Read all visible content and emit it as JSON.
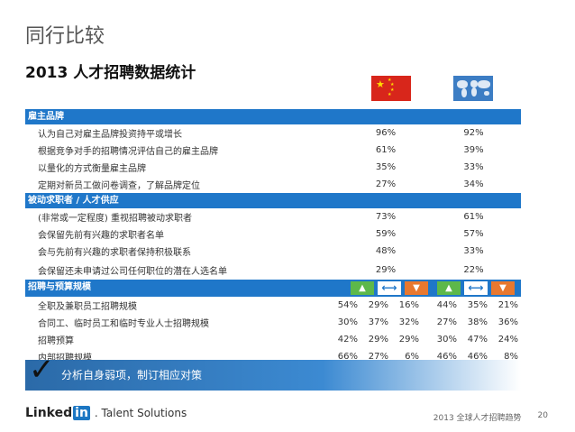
{
  "title": "同行比较",
  "subtitle": "2013 人才招聘数据统计",
  "sections": [
    {
      "label": "雇主品牌",
      "rows": [
        {
          "label": "认为自己对雇主品牌投资持平或增长",
          "cn": "96%",
          "world": "92%"
        },
        {
          "label": "根据竞争对手的招聘情况评估自己的雇主品牌",
          "cn": "61%",
          "world": "39%"
        },
        {
          "label": "以量化的方式衡量雇主品牌",
          "cn": "35%",
          "world": "33%"
        },
        {
          "label": "定期对新员工做问卷调查，了解品牌定位",
          "cn": "27%",
          "world": "34%"
        }
      ]
    },
    {
      "label": "被动求职者 / 人才供应",
      "rows": [
        {
          "label": "(非常或一定程度) 重视招聘被动求职者",
          "cn": "73%",
          "world": "61%"
        },
        {
          "label": "会保留先前有兴趣的求职者名单",
          "cn": "59%",
          "world": "57%"
        },
        {
          "label": "会与先前有兴趣的求职者保持积极联系",
          "cn": "48%",
          "world": "33%"
        },
        {
          "label": "会保留还未申请过公司任何职位的潜在人选名单",
          "cn": "29%",
          "world": "22%"
        }
      ]
    }
  ],
  "section3": {
    "label": "招聘与预算规模",
    "rows": [
      {
        "label": "全职及兼职员工招聘规模",
        "values": [
          "54%",
          "29%",
          "16%",
          "44%",
          "35%",
          "21%"
        ]
      },
      {
        "label": "合同工、临时员工和临时专业人士招聘规模",
        "values": [
          "30%",
          "37%",
          "32%",
          "27%",
          "38%",
          "36%"
        ]
      },
      {
        "label": "招聘预算",
        "values": [
          "42%",
          "29%",
          "29%",
          "30%",
          "47%",
          "24%"
        ]
      },
      {
        "label": "内部招聘规模",
        "values": [
          "66%",
          "27%",
          "6%",
          "46%",
          "46%",
          "8%"
        ]
      }
    ]
  },
  "banner": "分析自身弱项，制订相应对策",
  "logo": {
    "name": "Linked",
    "in": "in",
    "suffix": ". Talent Solutions"
  },
  "footer": {
    "text": "2013 全球人才招聘趋势",
    "page": "20"
  },
  "colors": {
    "section": "#1f77c9",
    "up": "#5db84a",
    "down": "#e8782f"
  },
  "icons": [
    "china-flag-icon",
    "world-map-icon",
    "up-arrow-icon",
    "horizontal-arrow-icon",
    "down-arrow-icon",
    "check-icon"
  ]
}
